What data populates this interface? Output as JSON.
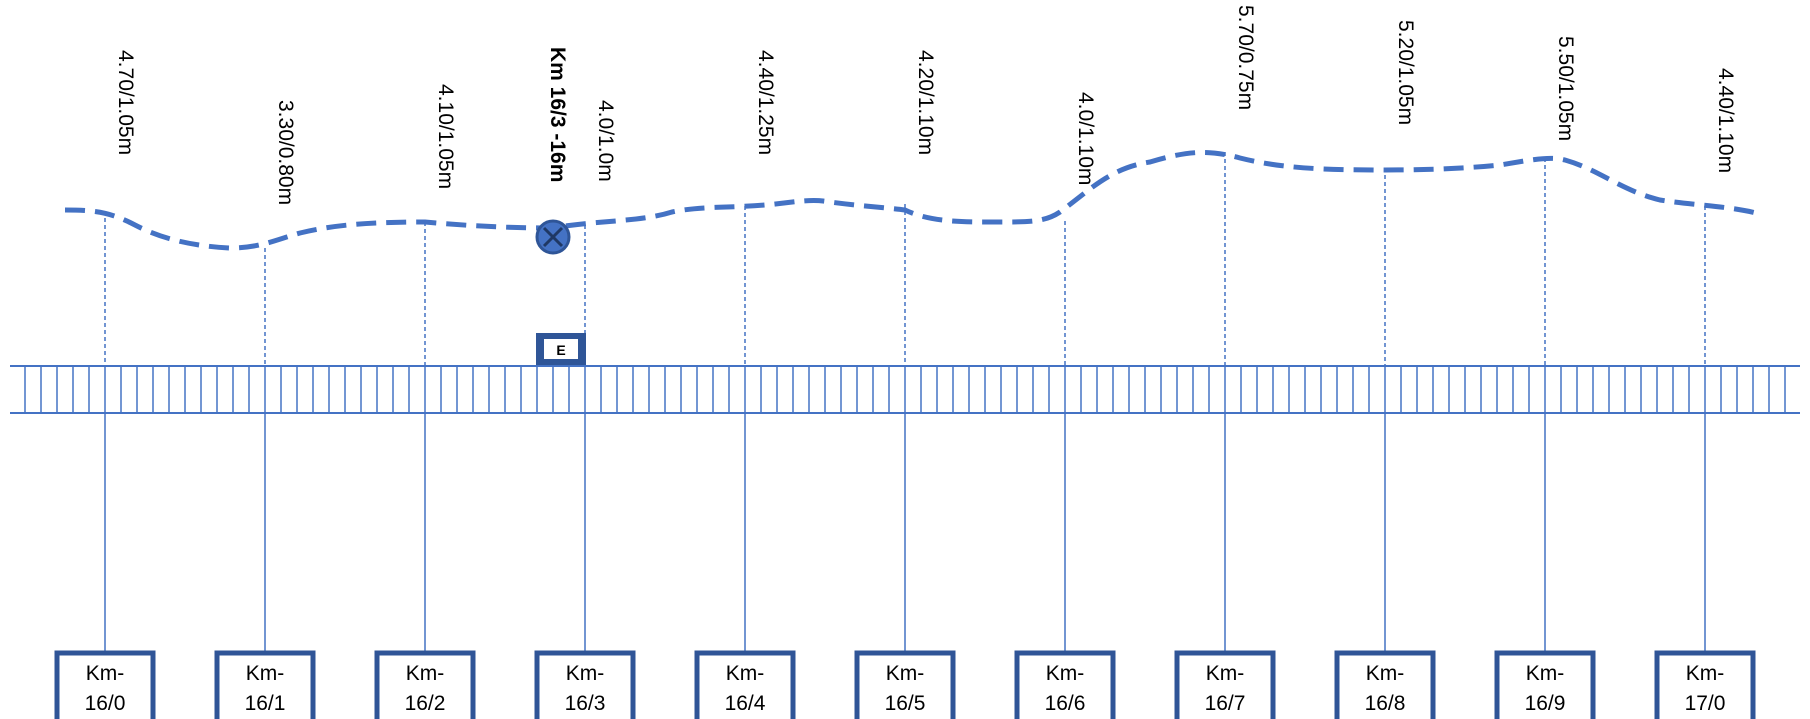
{
  "stations": [
    {
      "km_line1": "Km-",
      "km_line2": "16/0",
      "measurement": "4.70/1.05m"
    },
    {
      "km_line1": "Km-",
      "km_line2": "16/1",
      "measurement": "3.30/0.80m"
    },
    {
      "km_line1": "Km-",
      "km_line2": "16/2",
      "measurement": "4.10/1.05m"
    },
    {
      "km_line1": "Km-",
      "km_line2": "16/3",
      "measurement": "4.0/1.0m"
    },
    {
      "km_line1": "Km-",
      "km_line2": "16/4",
      "measurement": "4.40/1.25m"
    },
    {
      "km_line1": "Km-",
      "km_line2": "16/5",
      "measurement": "4.20/1.10m"
    },
    {
      "km_line1": "Km-",
      "km_line2": "16/6",
      "measurement": "4.0/1.10m"
    },
    {
      "km_line1": "Km-",
      "km_line2": "16/7",
      "measurement": "5.70/0.75m"
    },
    {
      "km_line1": "Km-",
      "km_line2": "16/8",
      "measurement": "5.20/1.05m"
    },
    {
      "km_line1": "Km-",
      "km_line2": "16/9",
      "measurement": "5.50/1.05m"
    },
    {
      "km_line1": "Km-",
      "km_line2": "17/0",
      "measurement": "4.40/1.10m"
    }
  ],
  "location_marker": {
    "label": "Km 16/3 -16m",
    "icon": "x-circle-icon"
  },
  "e_marker": {
    "label": "E"
  },
  "colors": {
    "line": "#4472C4",
    "box_border": "#2F5597",
    "marker_fill": "#4472C4",
    "e_box": "#2F5597"
  }
}
